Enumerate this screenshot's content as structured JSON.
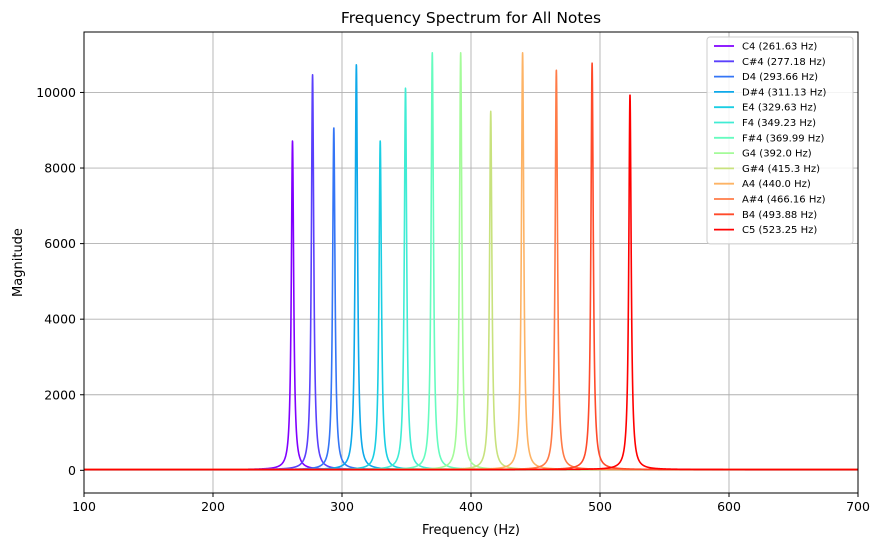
{
  "chart_data": {
    "type": "line",
    "title": "Frequency Spectrum for All Notes",
    "xlabel": "Frequency (Hz)",
    "ylabel": "Magnitude",
    "xlim": [
      100,
      700
    ],
    "ylim": [
      -600,
      11600
    ],
    "xticks": [
      100,
      200,
      300,
      400,
      500,
      600,
      700
    ],
    "yticks": [
      0,
      2000,
      4000,
      6000,
      8000,
      10000
    ],
    "xtick_labels": [
      "100",
      "200",
      "300",
      "400",
      "500",
      "600",
      "700"
    ],
    "ytick_labels": [
      "0",
      "2000",
      "4000",
      "6000",
      "8000",
      "10000"
    ],
    "grid": true,
    "legend_position": "top-right",
    "series": [
      {
        "name": "C4 (261.63 Hz)",
        "peak_freq": 261.63,
        "peak": 8700,
        "color": "#8000ff"
      },
      {
        "name": "C#4 (277.18 Hz)",
        "peak_freq": 277.18,
        "peak": 10450,
        "color": "#5a40fc"
      },
      {
        "name": "D4 (293.66 Hz)",
        "peak_freq": 293.66,
        "peak": 9050,
        "color": "#3475f6"
      },
      {
        "name": "D#4 (311.13 Hz)",
        "peak_freq": 311.13,
        "peak": 10720,
        "color": "#0ea9ea"
      },
      {
        "name": "E4 (329.63 Hz)",
        "peak_freq": 329.63,
        "peak": 8700,
        "color": "#1acee3"
      },
      {
        "name": "F4 (349.23 Hz)",
        "peak_freq": 349.23,
        "peak": 10100,
        "color": "#40ecd4"
      },
      {
        "name": "F#4 (369.99 Hz)",
        "peak_freq": 369.99,
        "peak": 11030,
        "color": "#66fcbf"
      },
      {
        "name": "G4 (392.0 Hz)",
        "peak_freq": 392.0,
        "peak": 11030,
        "color": "#a4fb99"
      },
      {
        "name": "G#4 (415.3 Hz)",
        "peak_freq": 415.3,
        "peak": 9480,
        "color": "#c8e27e"
      },
      {
        "name": "A4 (440.0 Hz)",
        "peak_freq": 440.0,
        "peak": 11030,
        "color": "#fdb365"
      },
      {
        "name": "A#4 (466.16 Hz)",
        "peak_freq": 466.16,
        "peak": 10580,
        "color": "#ff7b47"
      },
      {
        "name": "B4 (493.88 Hz)",
        "peak_freq": 493.88,
        "peak": 10760,
        "color": "#ff4a2a"
      },
      {
        "name": "C5 (523.25 Hz)",
        "peak_freq": 523.25,
        "peak": 9930,
        "color": "#ff0000"
      }
    ]
  }
}
